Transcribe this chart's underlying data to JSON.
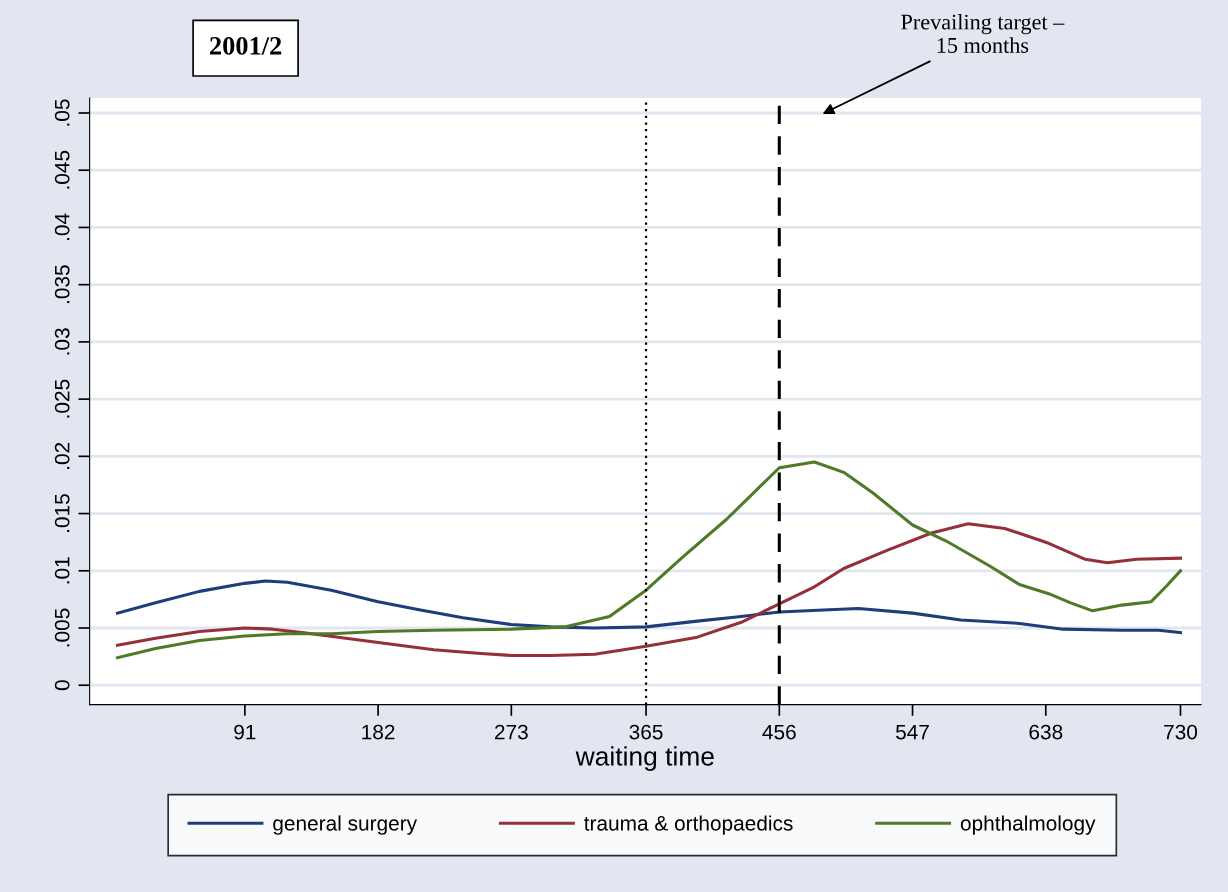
{
  "chart_data": {
    "type": "line",
    "title": "2001/2",
    "xlabel": "waiting time",
    "xlim": [
      -15,
      744
    ],
    "xticks": [
      91,
      182,
      273,
      365,
      456,
      547,
      638,
      730
    ],
    "ylim": [
      -0.0017,
      0.0513
    ],
    "yticks": [
      0,
      {
        "value": 0.005,
        "label": ".005"
      },
      {
        "value": 0.01,
        "label": ".01"
      },
      {
        "value": 0.015,
        "label": ".015"
      },
      {
        "value": 0.02,
        "label": ".02"
      },
      {
        "value": 0.025,
        "label": ".025"
      },
      {
        "value": 0.03,
        "label": ".03"
      },
      {
        "value": 0.035,
        "label": ".035"
      },
      {
        "value": 0.04,
        "label": ".04"
      },
      {
        "value": 0.045,
        "label": ".045"
      },
      {
        "value": 0.05,
        "label": ".05"
      }
    ],
    "grid": "y",
    "legend": "bottom",
    "marker": "none",
    "line_style": "solid",
    "ref_lines": [
      {
        "axis": "x",
        "value": 365,
        "line_style": "dotted",
        "color": "#000000"
      },
      {
        "axis": "x",
        "value": 456,
        "line_style": "dashed",
        "color": "#000000"
      }
    ],
    "annotations": [
      "Prevailing target –\n15 months"
    ],
    "series": [
      {
        "name": "general surgery",
        "color": "#1f3d7a",
        "x": [
          4,
          30,
          60,
          91,
          105,
          120,
          150,
          182,
          210,
          240,
          273,
          300,
          330,
          365,
          400,
          430,
          456,
          490,
          510,
          547,
          580,
          620,
          650,
          690,
          715,
          730
        ],
        "values": [
          0.0063,
          0.0072,
          0.0082,
          0.0089,
          0.0091,
          0.009,
          0.0083,
          0.0073,
          0.0066,
          0.0059,
          0.0053,
          0.0051,
          0.005,
          0.0051,
          0.0056,
          0.006,
          0.0064,
          0.0066,
          0.0067,
          0.0063,
          0.0057,
          0.0054,
          0.0049,
          0.0048,
          0.0048,
          0.0046
        ]
      },
      {
        "name": "trauma & orthopaedics",
        "color": "#93303a",
        "x": [
          4,
          30,
          60,
          91,
          110,
          130,
          160,
          190,
          220,
          250,
          273,
          300,
          330,
          365,
          400,
          430,
          456,
          480,
          500,
          530,
          560,
          585,
          610,
          640,
          665,
          680,
          700,
          730
        ],
        "values": [
          0.0035,
          0.0041,
          0.0047,
          0.005,
          0.0049,
          0.0046,
          0.0041,
          0.0036,
          0.0031,
          0.0028,
          0.0026,
          0.0026,
          0.0027,
          0.0034,
          0.0042,
          0.0055,
          0.0071,
          0.0086,
          0.0102,
          0.0118,
          0.0133,
          0.0141,
          0.0137,
          0.0124,
          0.011,
          0.0107,
          0.011,
          0.0111
        ]
      },
      {
        "name": "ophthalmology",
        "color": "#4f7a28",
        "x": [
          4,
          30,
          60,
          91,
          120,
          150,
          182,
          220,
          273,
          310,
          340,
          365,
          390,
          420,
          440,
          456,
          480,
          500,
          520,
          547,
          570,
          600,
          620,
          640,
          655,
          670,
          690,
          710,
          720,
          730
        ],
        "values": [
          0.0024,
          0.0032,
          0.0039,
          0.0043,
          0.0045,
          0.0045,
          0.0047,
          0.0048,
          0.0049,
          0.0051,
          0.006,
          0.0083,
          0.0112,
          0.0145,
          0.017,
          0.019,
          0.0195,
          0.0186,
          0.0168,
          0.014,
          0.0126,
          0.0104,
          0.0088,
          0.008,
          0.0072,
          0.0065,
          0.007,
          0.0073,
          0.0086,
          0.01
        ]
      }
    ]
  }
}
